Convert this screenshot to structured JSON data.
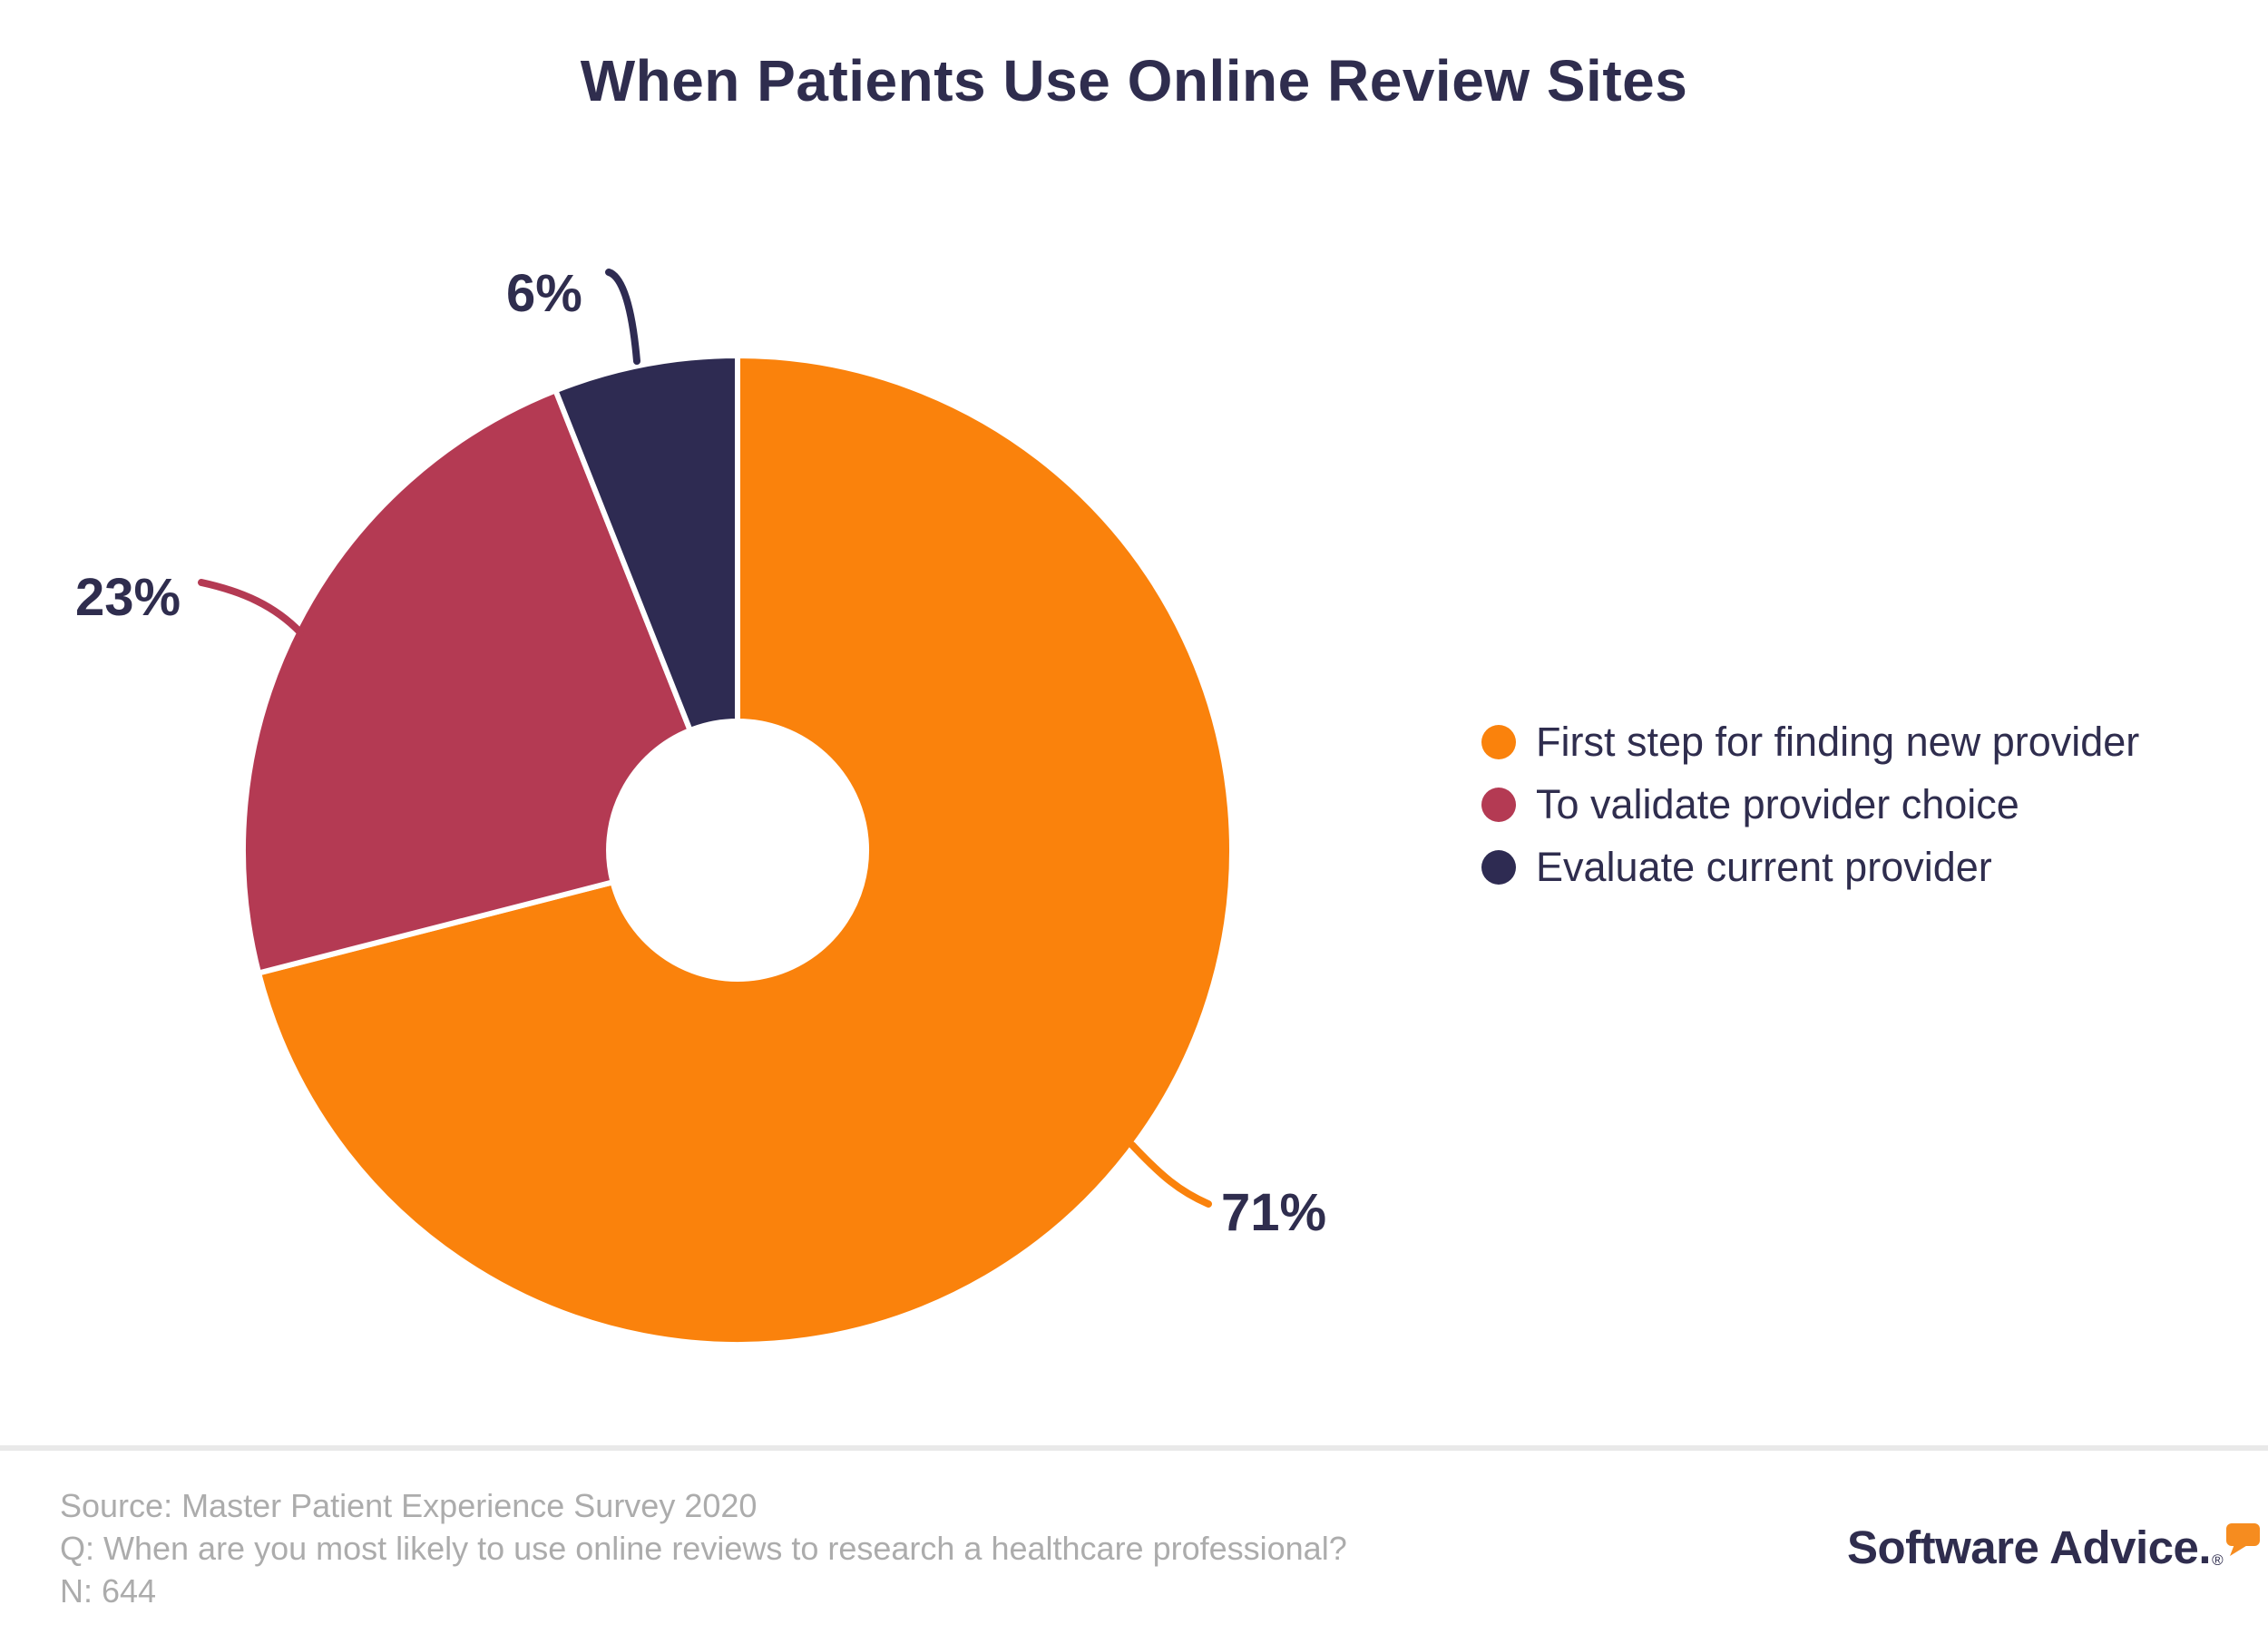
{
  "chart_data": {
    "type": "pie",
    "donut": true,
    "title": "When Patients Use Online Review Sites",
    "categories": [
      "First step for finding new provider",
      "To validate provider choice",
      "Evaluate current provider"
    ],
    "values": [
      71,
      23,
      6
    ],
    "unit": "%",
    "pct_labels": [
      "71%",
      "23%",
      "6%"
    ],
    "colors": [
      "#FA820C",
      "#B43A53",
      "#2E2B52"
    ],
    "start_angle": 0,
    "direction": "clockwise",
    "legend_position": "right",
    "hole_ratio": 0.26
  },
  "footer": {
    "source": "Source: Master Patient Experience Survey 2020",
    "question": "Q: When are you most likely to use online reviews to research a healthcare professional?",
    "n": "N: 644"
  },
  "branding": {
    "logo_text": "Software Advice.",
    "registered_mark": "®"
  },
  "colors": {
    "title_navy": "#2F2D4E",
    "footer_gray": "#ACACAC",
    "divider_gray": "#E9E9E9",
    "logo_navy": "#2F2D4E",
    "logo_bubble": "#F68C1F"
  }
}
